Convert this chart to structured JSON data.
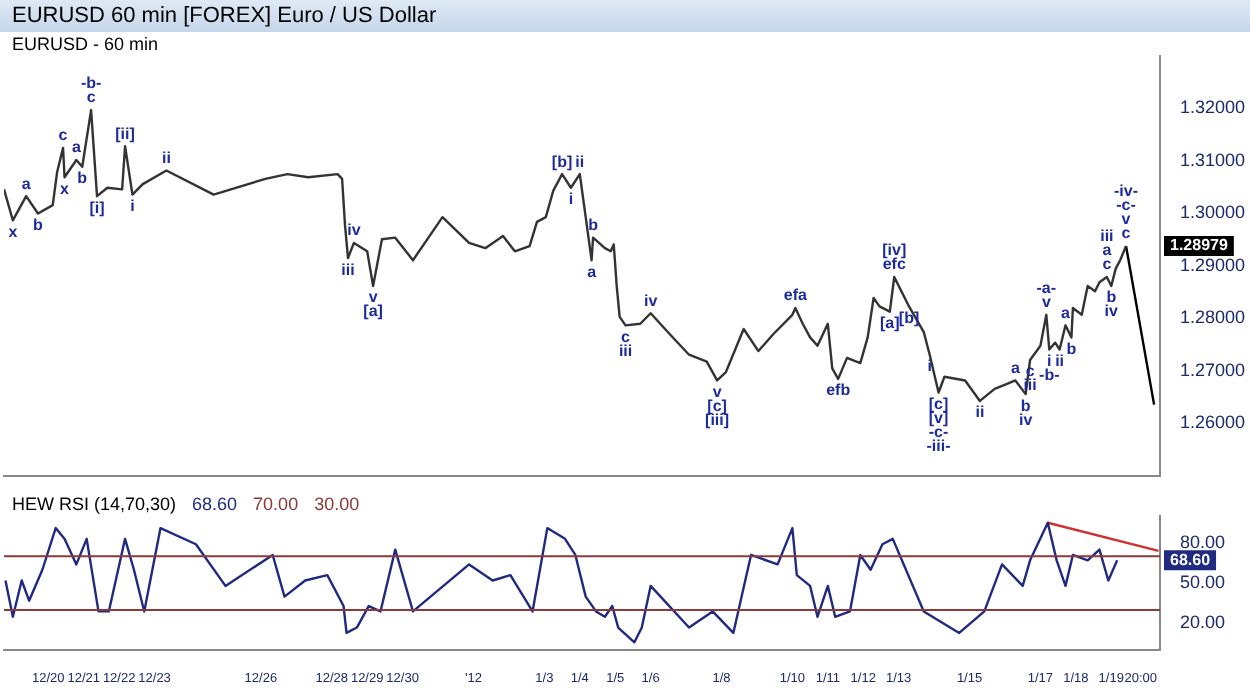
{
  "chart_data": [
    {
      "type": "line",
      "title": "EURUSD 60 min [FOREX] Euro / US Dollar",
      "subtitle": "EURUSD - 60 min",
      "xlim": [
        "2011-12-18T18:00",
        "2012-01-20T09:00"
      ],
      "ylim": [
        1.25,
        1.33
      ],
      "yticks": [
        {
          "value": 1.26,
          "label": "1.26000"
        },
        {
          "value": 1.27,
          "label": "1.27000"
        },
        {
          "value": 1.28,
          "label": "1.28000"
        },
        {
          "value": 1.29,
          "label": "1.29000"
        },
        {
          "value": 1.3,
          "label": "1.30000"
        },
        {
          "value": 1.31,
          "label": "1.31000"
        },
        {
          "value": 1.32,
          "label": "1.32000"
        }
      ],
      "tick_labels": "y",
      "series": [
        {
          "color": "#333333",
          "x": [
            "2011-12-18T18:00",
            "2011-12-19T00:00",
            "2011-12-19T09:00",
            "2011-12-19T17:00",
            "2011-12-20T03:00",
            "2011-12-20T06:00",
            "2011-12-20T10:00",
            "2011-12-20T11:00",
            "2011-12-20T19:00",
            "2011-12-20T23:00",
            "2011-12-21T05:00",
            "2011-12-21T09:00",
            "2011-12-21T16:00",
            "2011-12-22T02:00",
            "2011-12-22T04:00",
            "2011-12-22T09:00",
            "2011-12-22T16:00",
            "2011-12-23T08:00",
            "2011-12-24T16:00",
            "2011-12-26T03:00",
            "2011-12-26T18:00",
            "2011-12-27T08:00",
            "2011-12-28T04:00",
            "2011-12-28T07:00",
            "2011-12-28T09:00",
            "2011-12-28T11:00",
            "2011-12-28T15:00",
            "2011-12-29T00:00",
            "2011-12-29T04:00",
            "2011-12-29T10:00",
            "2011-12-29T19:00",
            "2011-12-30T07:00",
            "2011-12-31T03:00",
            "2011-12-31T21:00",
            "2012-01-01T08:00",
            "2012-01-01T20:00",
            "2012-01-02T04:00",
            "2012-01-02T14:00",
            "2012-01-02T19:00",
            "2012-01-03T01:00",
            "2012-01-03T06:00",
            "2012-01-03T12:00",
            "2012-01-03T18:00",
            "2012-01-04T00:00",
            "2012-01-04T04:00",
            "2012-01-04T08:00",
            "2012-01-04T09:00",
            "2012-01-04T17:00",
            "2012-01-04T21:00",
            "2012-01-04T23:00",
            "2012-01-05T01:00",
            "2012-01-05T03:00",
            "2012-01-05T07:00",
            "2012-01-05T17:00",
            "2012-01-06T00:00",
            "2012-01-06T13:00",
            "2012-01-07T02:00",
            "2012-01-07T14:00",
            "2012-01-07T21:00",
            "2012-01-08T03:00",
            "2012-01-08T15:00",
            "2012-01-09T01:00",
            "2012-01-09T11:00",
            "2012-01-10T00:00",
            "2012-01-10T02:00",
            "2012-01-10T07:00",
            "2012-01-10T12:00",
            "2012-01-10T17:00",
            "2012-01-11T00:00",
            "2012-01-11T03:00",
            "2012-01-11T07:00",
            "2012-01-11T13:00",
            "2012-01-11T22:00",
            "2012-01-12T03:00",
            "2012-01-12T07:00",
            "2012-01-12T11:00",
            "2012-01-12T18:00",
            "2012-01-12T21:00",
            "2012-01-13T07:00",
            "2012-01-13T17:00",
            "2012-01-13T21:00",
            "2012-01-14T03:00",
            "2012-01-14T07:00",
            "2012-01-14T21:00",
            "2012-01-15T07:00",
            "2012-01-15T17:00",
            "2012-01-16T01:00",
            "2012-01-16T07:00",
            "2012-01-16T14:00",
            "2012-01-16T17:00",
            "2012-01-17T00:00",
            "2012-01-17T04:00",
            "2012-01-17T06:00",
            "2012-01-17T10:00",
            "2012-01-17T13:00",
            "2012-01-17T17:00",
            "2012-01-17T21:00",
            "2012-01-17T22:00",
            "2012-01-18T04:00",
            "2012-01-18T08:00",
            "2012-01-18T13:00",
            "2012-01-18T16:00",
            "2012-01-18T21:00",
            "2012-01-19T00:00",
            "2012-01-19T03:00",
            "2012-01-19T06:00",
            "2012-01-19T10:00"
          ],
          "values": [
            1.3046,
            1.2987,
            1.3033,
            1.3,
            1.3016,
            1.3079,
            1.3125,
            1.3069,
            1.3102,
            1.3089,
            1.3197,
            1.3033,
            1.3049,
            1.3046,
            1.3128,
            1.3036,
            1.3056,
            1.3082,
            1.3036,
            1.3066,
            1.3075,
            1.3069,
            1.3075,
            1.3066,
            1.2977,
            1.2915,
            1.2944,
            1.2928,
            1.2862,
            1.2951,
            1.2954,
            1.2911,
            1.2993,
            1.2944,
            1.2934,
            1.2957,
            1.2928,
            1.2938,
            1.2984,
            1.2993,
            1.3043,
            1.3075,
            1.3049,
            1.3075,
            1.2993,
            1.2911,
            1.2954,
            1.2934,
            1.2928,
            1.2941,
            1.2862,
            1.2803,
            1.2787,
            1.279,
            1.281,
            1.277,
            1.2731,
            1.2718,
            1.2682,
            1.2698,
            1.278,
            1.2738,
            1.277,
            1.2807,
            1.282,
            1.279,
            1.2764,
            1.2748,
            1.279,
            1.2705,
            1.2685,
            1.2725,
            1.2715,
            1.2764,
            1.2839,
            1.2823,
            1.2813,
            1.2879,
            1.2823,
            1.2774,
            1.2731,
            1.2659,
            1.2689,
            1.2682,
            1.2643,
            1.2666,
            1.2675,
            1.2682,
            1.2656,
            1.2721,
            1.2748,
            1.2807,
            1.2741,
            1.2754,
            1.2741,
            1.2787,
            1.2764,
            1.282,
            1.2807,
            1.2862,
            1.2852,
            1.2869,
            1.2879,
            1.2862,
            1.2895,
            1.2911,
            1.2938
          ]
        },
        {
          "color": "#000000",
          "x": [
            "2012-01-19T10:00",
            "2012-01-20T05:00"
          ],
          "values": [
            1.2938,
            1.2636
          ]
        }
      ],
      "annotations": [
        "1.28979",
        {
          "text": "x",
          "x": "2011-12-19T00:00",
          "y": 1.2987
        },
        {
          "text": "a",
          "x": "2011-12-19T09:00",
          "y": 1.3033
        },
        {
          "text": "b",
          "x": "2011-12-19T17:00",
          "y": 1.3
        },
        {
          "text": "c",
          "x": "2011-12-20T10:00",
          "y": 1.3125
        },
        {
          "text": "x",
          "x": "2011-12-20T11:00",
          "y": 1.3069
        },
        {
          "text": "a",
          "x": "2011-12-20T19:00",
          "y": 1.3102
        },
        {
          "text": "b",
          "x": "2011-12-20T23:00",
          "y": 1.3089
        },
        {
          "text": "c",
          "x": "2011-12-21T05:00",
          "y": 1.3197
        },
        {
          "text": "-b-",
          "x": "2011-12-21T05:00",
          "y": 1.3197
        },
        {
          "text": "[i]",
          "x": "2011-12-21T09:00",
          "y": 1.3033
        },
        {
          "text": "[ii]",
          "x": "2011-12-22T04:00",
          "y": 1.3128
        },
        {
          "text": "i",
          "x": "2011-12-22T09:00",
          "y": 1.3036
        },
        {
          "text": "ii",
          "x": "2011-12-23T08:00",
          "y": 1.3082
        },
        {
          "text": "iii",
          "x": "2011-12-28T11:00",
          "y": 1.2915
        },
        {
          "text": "iv",
          "x": "2011-12-28T15:00",
          "y": 1.2944
        },
        {
          "text": "v",
          "x": "2011-12-29T04:00",
          "y": 1.2862
        },
        {
          "text": "[a]",
          "x": "2011-12-29T04:00",
          "y": 1.2862
        },
        {
          "text": "[b]",
          "x": "2012-01-03T12:00",
          "y": 1.3075
        },
        {
          "text": "i",
          "x": "2012-01-03T18:00",
          "y": 1.3049
        },
        {
          "text": "ii",
          "x": "2012-01-04T00:00",
          "y": 1.3075
        },
        {
          "text": "a",
          "x": "2012-01-04T08:00",
          "y": 1.2911
        },
        {
          "text": "b",
          "x": "2012-01-04T09:00",
          "y": 1.2954
        },
        {
          "text": "c",
          "x": "2012-01-05T07:00",
          "y": 1.2787
        },
        {
          "text": "iii",
          "x": "2012-01-05T07:00",
          "y": 1.2787
        },
        {
          "text": "iv",
          "x": "2012-01-06T00:00",
          "y": 1.281
        },
        {
          "text": "v",
          "x": "2012-01-07T21:00",
          "y": 1.2682
        },
        {
          "text": "[c]",
          "x": "2012-01-07T21:00",
          "y": 1.2682
        },
        {
          "text": "[iii]",
          "x": "2012-01-07T21:00",
          "y": 1.2682
        },
        {
          "text": "efa",
          "x": "2012-01-10T02:00",
          "y": 1.282
        },
        {
          "text": "efb",
          "x": "2012-01-11T07:00",
          "y": 1.2685
        },
        {
          "text": "efc",
          "x": "2012-01-12T21:00",
          "y": 1.2879
        },
        {
          "text": "[iv]",
          "x": "2012-01-12T21:00",
          "y": 1.2879
        },
        {
          "text": "[b]",
          "x": "2012-01-13T07:00",
          "y": 1.2823
        },
        {
          "text": "[a]",
          "x": "2012-01-12T18:00",
          "y": 1.2813
        },
        {
          "text": "i",
          "x": "2012-01-13T21:00",
          "y": 1.2731
        },
        {
          "text": "[c]",
          "x": "2012-01-14T03:00",
          "y": 1.2659
        },
        {
          "text": "[v]",
          "x": "2012-01-14T03:00",
          "y": 1.2659
        },
        {
          "text": "-c-",
          "x": "2012-01-14T03:00",
          "y": 1.2659
        },
        {
          "text": "-iii-",
          "x": "2012-01-14T03:00",
          "y": 1.2659
        },
        {
          "text": "ii",
          "x": "2012-01-15T07:00",
          "y": 1.2643
        },
        {
          "text": "a",
          "x": "2012-01-16T07:00",
          "y": 1.2682
        },
        {
          "text": "b",
          "x": "2012-01-16T14:00",
          "y": 1.2656
        },
        {
          "text": "iv",
          "x": "2012-01-16T14:00",
          "y": 1.2656
        },
        {
          "text": "c",
          "x": "2012-01-16T17:00",
          "y": 1.2721
        },
        {
          "text": "iii",
          "x": "2012-01-16T17:00",
          "y": 1.2721
        },
        {
          "text": "v",
          "x": "2012-01-17T04:00",
          "y": 1.2807
        },
        {
          "text": "-a-",
          "x": "2012-01-17T04:00",
          "y": 1.2807
        },
        {
          "text": "i",
          "x": "2012-01-17T06:00",
          "y": 1.2741
        },
        {
          "text": "-b-",
          "x": "2012-01-17T06:00",
          "y": 1.2741
        },
        {
          "text": "ii",
          "x": "2012-01-17T13:00",
          "y": 1.2741
        },
        {
          "text": "a",
          "x": "2012-01-17T17:00",
          "y": 1.2787
        },
        {
          "text": "b",
          "x": "2012-01-17T21:00",
          "y": 1.2764
        },
        {
          "text": "c",
          "x": "2012-01-18T21:00",
          "y": 1.2879
        },
        {
          "text": "a",
          "x": "2012-01-18T21:00",
          "y": 1.2879
        },
        {
          "text": "iii",
          "x": "2012-01-18T21:00",
          "y": 1.2879
        },
        {
          "text": "b",
          "x": "2012-01-19T00:00",
          "y": 1.2862
        },
        {
          "text": "iv",
          "x": "2012-01-19T00:00",
          "y": 1.2862
        },
        {
          "text": "c",
          "x": "2012-01-19T10:00",
          "y": 1.2938
        },
        {
          "text": "v",
          "x": "2012-01-19T10:00",
          "y": 1.2938
        },
        {
          "text": "-c-",
          "x": "2012-01-19T10:00",
          "y": 1.2938
        },
        {
          "text": "-iv-",
          "x": "2012-01-19T10:00",
          "y": 1.2938
        }
      ]
    },
    {
      "type": "line",
      "xlim": [
        "2011-12-18T18:00",
        "2012-01-20T09:00"
      ],
      "ylim": [
        0,
        100
      ],
      "yticks": [
        {
          "value": 20,
          "label": "20.00"
        },
        {
          "value": 50,
          "label": "50.00"
        },
        {
          "value": 80,
          "label": "80.00"
        }
      ],
      "xticks": [
        {
          "value": "2011-12-20",
          "label": "12/20"
        },
        {
          "value": "2011-12-21",
          "label": "12/21"
        },
        {
          "value": "2011-12-22",
          "label": "12/22"
        },
        {
          "value": "2011-12-23",
          "label": "12/23"
        },
        {
          "value": "2011-12-26",
          "label": "12/26"
        },
        {
          "value": "2011-12-28",
          "label": "12/28"
        },
        {
          "value": "2011-12-29",
          "label": "12/29"
        },
        {
          "value": "2011-12-30",
          "label": "12/30"
        },
        {
          "value": "2012-01-01",
          "label": "'12"
        },
        {
          "value": "2012-01-03",
          "label": "1/3"
        },
        {
          "value": "2012-01-04",
          "label": "1/4"
        },
        {
          "value": "2012-01-05",
          "label": "1/5"
        },
        {
          "value": "2012-01-06",
          "label": "1/6"
        },
        {
          "value": "2012-01-08",
          "label": "1/8"
        },
        {
          "value": "2012-01-10",
          "label": "1/10"
        },
        {
          "value": "2012-01-11",
          "label": "1/11"
        },
        {
          "value": "2012-01-12",
          "label": "1/12"
        },
        {
          "value": "2012-01-13",
          "label": "1/13"
        },
        {
          "value": "2012-01-15",
          "label": "1/15"
        },
        {
          "value": "2012-01-17",
          "label": "1/17"
        },
        {
          "value": "2012-01-18",
          "label": "1/18"
        },
        {
          "value": "2012-01-19",
          "label": "1/19"
        },
        {
          "value": "2012-01-19T20:00",
          "label": "20:00"
        }
      ],
      "series": [
        {
          "name": "HEW RSI (14,70,30)",
          "color": "#1f2a80",
          "x": [
            "2011-12-18T19:00",
            "2011-12-19T00:00",
            "2011-12-19T06:00",
            "2011-12-19T11:00",
            "2011-12-19T20:00",
            "2011-12-20T05:00",
            "2011-12-20T11:00",
            "2011-12-20T19:00",
            "2011-12-21T02:00",
            "2011-12-21T10:00",
            "2011-12-21T17:00",
            "2011-12-22T04:00",
            "2011-12-22T10:00",
            "2011-12-22T17:00",
            "2011-12-23T04:00",
            "2011-12-24T04:00",
            "2011-12-25T00:00",
            "2011-12-26T08:00",
            "2011-12-26T16:00",
            "2011-12-27T06:00",
            "2011-12-27T21:00",
            "2011-12-28T08:00",
            "2011-12-28T10:00",
            "2011-12-28T17:00",
            "2011-12-29T01:00",
            "2011-12-29T09:00",
            "2011-12-29T19:00",
            "2011-12-30T07:00",
            "2011-12-31T21:00",
            "2012-01-01T13:00",
            "2012-01-02T01:00",
            "2012-01-02T16:00",
            "2012-01-03T02:00",
            "2012-01-03T14:00",
            "2012-01-03T21:00",
            "2012-01-04T04:00",
            "2012-01-04T11:00",
            "2012-01-04T17:00",
            "2012-01-04T22:00",
            "2012-01-05T02:00",
            "2012-01-05T13:00",
            "2012-01-05T18:00",
            "2012-01-06T00:00",
            "2012-01-07T02:00",
            "2012-01-07T18:00",
            "2012-01-08T08:00",
            "2012-01-08T20:00",
            "2012-01-09T14:00",
            "2012-01-10T00:00",
            "2012-01-10T03:00",
            "2012-01-10T12:00",
            "2012-01-10T17:00",
            "2012-01-11T00:00",
            "2012-01-11T05:00",
            "2012-01-11T15:00",
            "2012-01-11T22:00",
            "2012-01-12T05:00",
            "2012-01-12T13:00",
            "2012-01-12T20:00",
            "2012-01-13T17:00",
            "2012-01-14T17:00",
            "2012-01-15T10:00",
            "2012-01-15T22:00",
            "2012-01-16T12:00",
            "2012-01-16T17:00",
            "2012-01-17T05:00",
            "2012-01-17T11:00",
            "2012-01-17T17:00",
            "2012-01-17T22:00",
            "2012-01-18T08:00",
            "2012-01-18T16:00",
            "2012-01-18T22:00",
            "2012-01-19T04:00"
          ],
          "values": [
            52,
            25,
            52,
            37,
            60,
            91,
            83,
            64,
            83,
            29,
            29,
            83,
            60,
            29,
            91,
            79,
            48,
            71,
            40,
            52,
            56,
            33,
            13,
            17,
            33,
            29,
            75,
            29,
            64,
            52,
            56,
            29,
            91,
            83,
            71,
            40,
            29,
            25,
            33,
            17,
            6,
            17,
            48,
            17,
            29,
            13,
            71,
            64,
            91,
            56,
            48,
            25,
            48,
            25,
            29,
            71,
            60,
            79,
            83,
            29,
            13,
            29,
            64,
            48,
            67,
            95,
            67,
            48,
            71,
            67,
            75,
            52,
            67
          ]
        },
        {
          "color": "#cc3333",
          "x": [
            "2012-01-17T05:00",
            "2012-01-20T08:00"
          ],
          "values": [
            95,
            74
          ]
        }
      ],
      "ref_lines": [
        {
          "axis": "y",
          "value": 70,
          "label": "70.00",
          "color": "#8b3a3a"
        },
        {
          "axis": "y",
          "value": 30,
          "label": "30.00",
          "color": "#8b3a3a"
        }
      ],
      "annotations": [
        "68.60"
      ]
    }
  ]
}
